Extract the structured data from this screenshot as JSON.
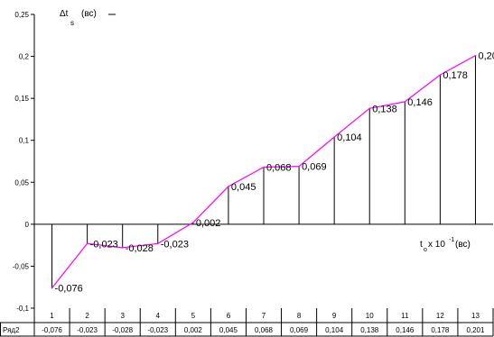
{
  "chart_data": {
    "type": "line",
    "x": [
      "1",
      "2",
      "3",
      "4",
      "5",
      "6",
      "7",
      "8",
      "9",
      "10",
      "11",
      "12",
      "13"
    ],
    "series": [
      {
        "name": "Ряд2",
        "values": [
          -0.076,
          -0.023,
          -0.028,
          -0.023,
          0.002,
          0.045,
          0.068,
          0.069,
          0.104,
          0.138,
          0.146,
          0.178,
          0.201
        ],
        "labels": [
          "-0,076",
          "-0,023",
          "-0,028",
          "-0,023",
          "0,002",
          "0,045",
          "0,068",
          "0,069",
          "0,104",
          "0,138",
          "0,146",
          "0,178",
          "0,20"
        ],
        "table_values": [
          "-0,076",
          "-0,023",
          "-0,028",
          "-0,023",
          "0,002",
          "0,045",
          "0,068",
          "0,069",
          "0,104",
          "0,138",
          "0,146",
          "0,178",
          "0,201"
        ],
        "color": "#ff00ff"
      }
    ],
    "yticks": [
      {
        "v": 0.25,
        "label": "0,25"
      },
      {
        "v": 0.2,
        "label": "0,2"
      },
      {
        "v": 0.15,
        "label": "0,15"
      },
      {
        "v": 0.1,
        "label": "0,1"
      },
      {
        "v": 0.05,
        "label": "0,05"
      },
      {
        "v": 0.0,
        "label": "0"
      },
      {
        "v": -0.05,
        "label": "-0,05"
      },
      {
        "v": -0.1,
        "label": "-0,1"
      }
    ],
    "ylim": [
      -0.1,
      0.25
    ],
    "ylabel": {
      "main": "Δt",
      "sub": "s",
      "unit": "(вс)"
    },
    "xlabel": {
      "main": "t",
      "sub": "o",
      "mid": "x 10",
      "sup": "-1",
      "unit": "(вс)"
    },
    "grid": false,
    "drop_lines": true,
    "data_table": true
  }
}
